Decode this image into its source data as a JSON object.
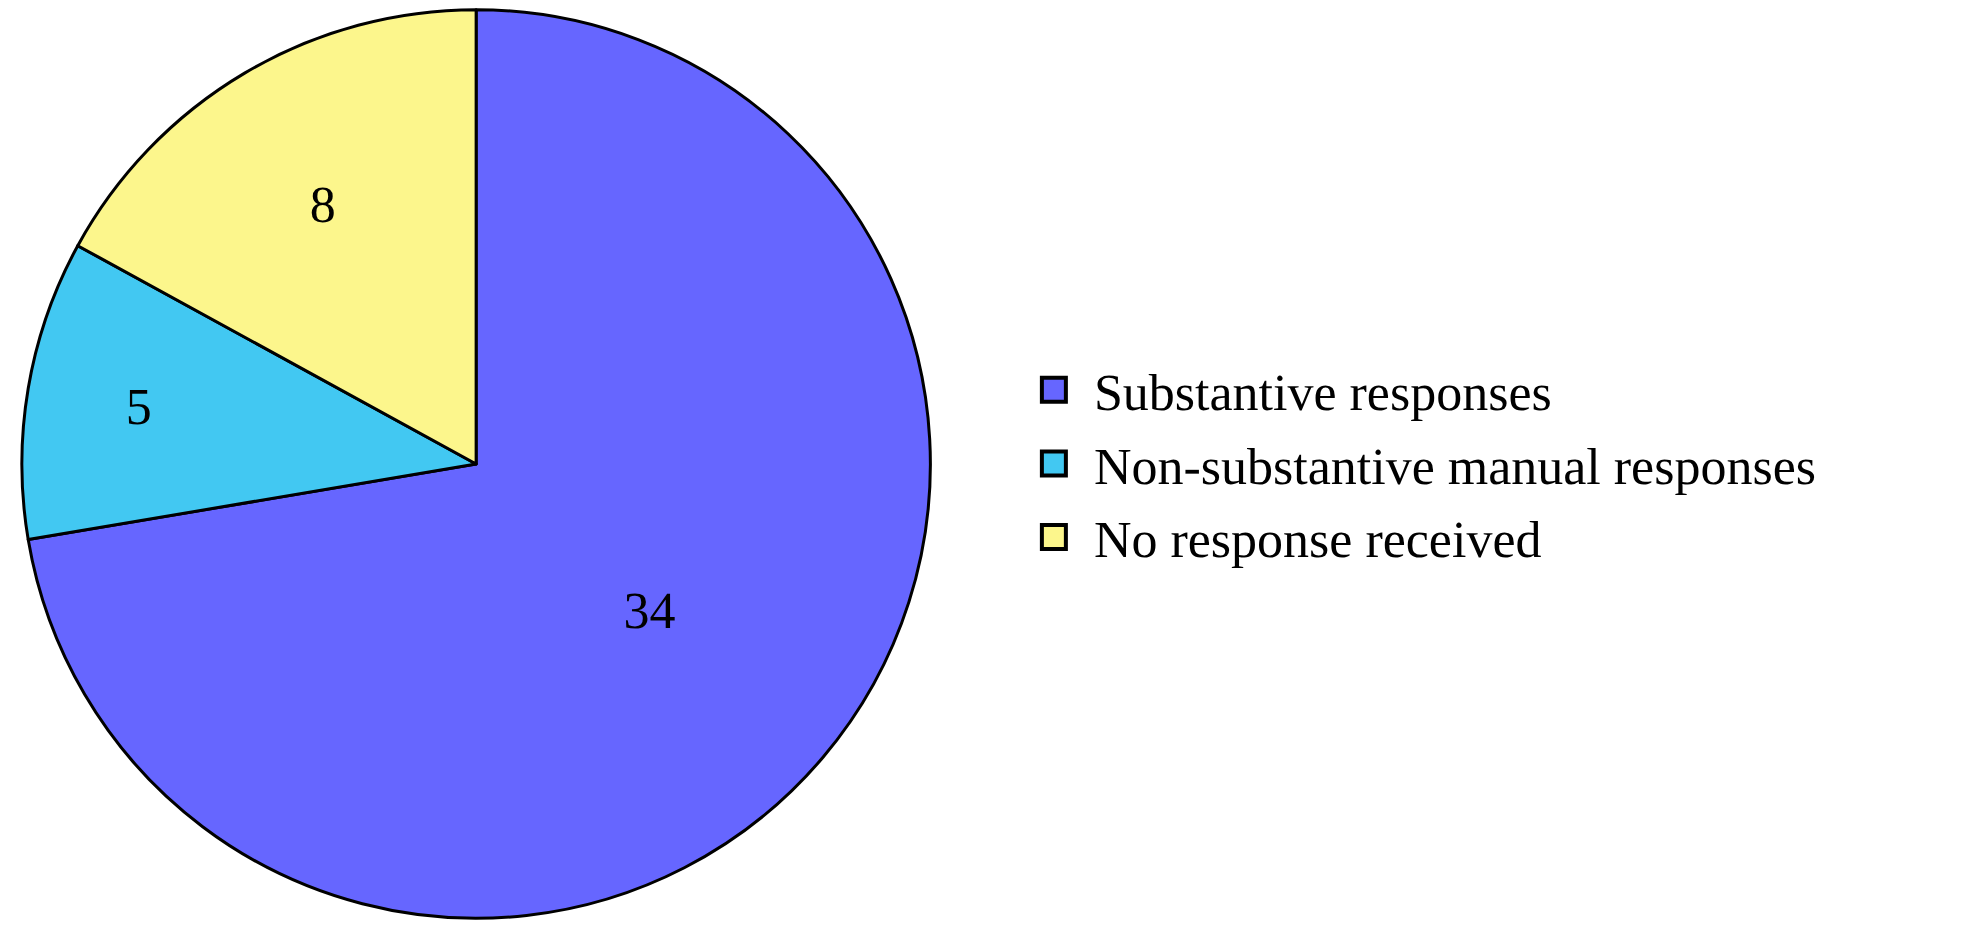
{
  "chart_data": {
    "type": "pie",
    "categories": [
      "Substantive responses",
      "Non-substantive manual responses",
      "No response received"
    ],
    "values": [
      34,
      5,
      8
    ],
    "colors": [
      "#6666ff",
      "#42c8f2",
      "#fcf68c"
    ],
    "data_labels": true,
    "legend": "right"
  }
}
